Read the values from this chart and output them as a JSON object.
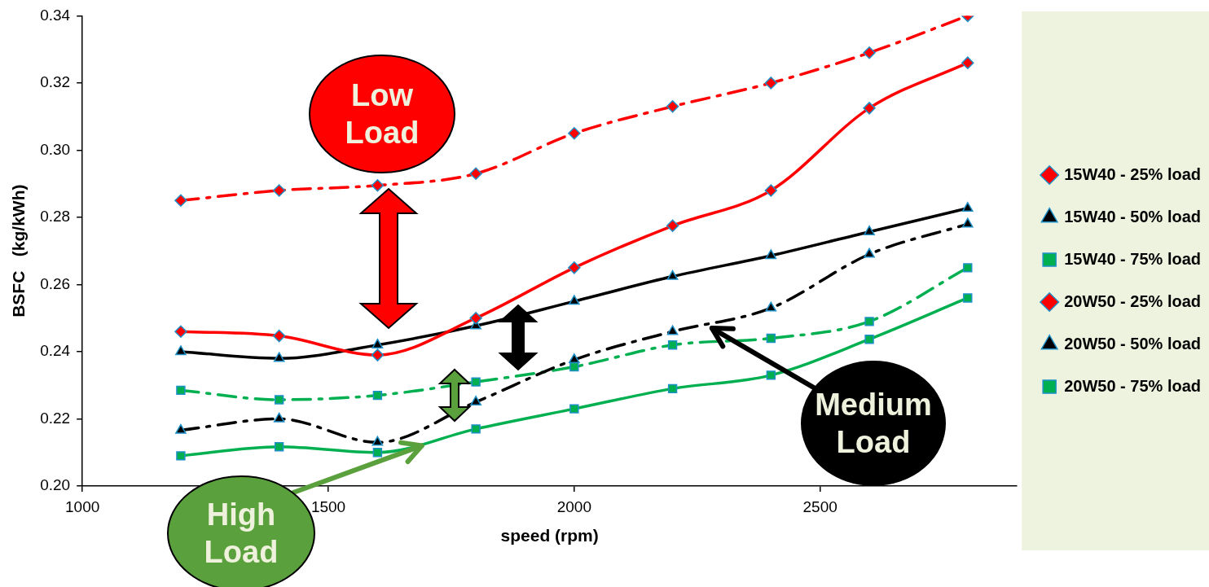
{
  "chart_data": {
    "type": "line",
    "xlabel": "speed (rpm)",
    "ylabel": "BSFC   (kg/kWh)",
    "x": [
      1200,
      1400,
      1600,
      1800,
      2000,
      2200,
      2400,
      2600,
      2800
    ],
    "xlim": [
      1000,
      2900
    ],
    "xticks": [
      1000,
      1500,
      2000,
      2500
    ],
    "ylim": [
      0.2,
      0.34
    ],
    "yticks": [
      {
        "value": 0.2,
        "label": "0.20"
      },
      {
        "value": 0.22,
        "label": "0.22"
      },
      {
        "value": 0.24,
        "label": "0.24"
      },
      {
        "value": 0.26,
        "label": "0.26"
      },
      {
        "value": 0.28,
        "label": "0.28"
      },
      {
        "value": 0.3,
        "label": "0.30"
      },
      {
        "value": 0.32,
        "label": "0.32"
      },
      {
        "value": 0.34,
        "label": "0.34"
      }
    ],
    "grid": false,
    "legend": "right",
    "series": [
      {
        "name": "15W40 - 25% load",
        "color": "#ff0000",
        "marker": "diamond",
        "line_style": "solid",
        "values": [
          0.246,
          0.2447,
          0.239,
          0.25,
          0.265,
          0.2775,
          0.288,
          0.3125,
          0.326
        ]
      },
      {
        "name": "15W40 - 50% load",
        "color": "#000000",
        "marker": "triangle",
        "line_style": "dashed",
        "values": [
          0.2166,
          0.22,
          0.213,
          0.225,
          0.2376,
          0.246,
          0.253,
          0.269,
          0.278
        ]
      },
      {
        "name": "15W40 - 75% load",
        "color": "#00b050",
        "marker": "square",
        "line_style": "solid",
        "values": [
          0.209,
          0.2117,
          0.21,
          0.217,
          0.223,
          0.229,
          0.233,
          0.2437,
          0.256
        ]
      },
      {
        "name": "20W50 - 25% load",
        "color": "#ff0000",
        "marker": "diamond",
        "line_style": "dashed",
        "values": [
          0.285,
          0.288,
          0.2895,
          0.293,
          0.305,
          0.313,
          0.32,
          0.329,
          0.34
        ]
      },
      {
        "name": "20W50 - 50% load",
        "color": "#000000",
        "marker": "triangle",
        "line_style": "solid",
        "values": [
          0.24,
          0.238,
          0.242,
          0.2477,
          0.255,
          0.2624,
          0.2686,
          0.2757,
          0.2827
        ]
      },
      {
        "name": "20W50 - 75% load",
        "color": "#00b050",
        "marker": "square",
        "line_style": "dashed",
        "values": [
          0.2285,
          0.2257,
          0.227,
          0.231,
          0.2355,
          0.242,
          0.244,
          0.249,
          0.265
        ]
      }
    ],
    "annotations": [
      "Low Load",
      {
        "text": "Medium Load",
        "x": 2280,
        "y": 0.247
      },
      {
        "text": "High Load",
        "x": 1690,
        "y": 0.212
      }
    ]
  }
}
